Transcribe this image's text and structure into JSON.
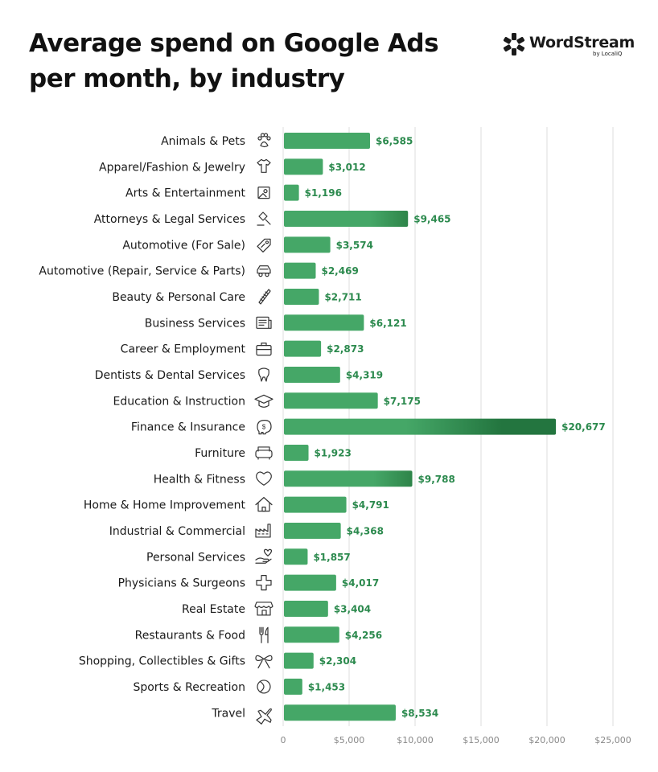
{
  "header": {
    "title": "Average spend on Google Ads per month, by industry"
  },
  "logo": {
    "wordmark": "WordStream",
    "byline": "by LocaliQ"
  },
  "chart_data": {
    "type": "bar",
    "orientation": "horizontal",
    "title": "Average spend on Google Ads per month, by industry",
    "xlabel": "",
    "ylabel": "",
    "xlim": [
      0,
      25000
    ],
    "ticks": [
      0,
      5000,
      10000,
      15000,
      20000,
      25000
    ],
    "tick_labels": [
      "0",
      "$5,000",
      "$10,000",
      "$15,000",
      "$20,000",
      "$25,000"
    ],
    "grid": "vertical",
    "bar_color": "#45a767",
    "bar_color_dark": "#23753f",
    "label_color": "#2c8a4e",
    "categories": [
      {
        "name": "Animals & Pets",
        "value": 6585,
        "label": "$6,585",
        "icon": "paw-icon"
      },
      {
        "name": "Apparel/Fashion & Jewelry",
        "value": 3012,
        "label": "$3,012",
        "icon": "tshirt-icon"
      },
      {
        "name": "Arts & Entertainment",
        "value": 1196,
        "label": "$1,196",
        "icon": "picture-icon"
      },
      {
        "name": "Attorneys & Legal Services",
        "value": 9465,
        "label": "$9,465",
        "icon": "gavel-icon"
      },
      {
        "name": "Automotive (For Sale)",
        "value": 3574,
        "label": "$3,574",
        "icon": "price-tag-icon"
      },
      {
        "name": "Automotive (Repair, Service & Parts)",
        "value": 2469,
        "label": "$2,469",
        "icon": "car-icon"
      },
      {
        "name": "Beauty & Personal Care",
        "value": 2711,
        "label": "$2,711",
        "icon": "comb-icon"
      },
      {
        "name": "Business Services",
        "value": 6121,
        "label": "$6,121",
        "icon": "document-icon"
      },
      {
        "name": "Career & Employment",
        "value": 2873,
        "label": "$2,873",
        "icon": "briefcase-icon"
      },
      {
        "name": "Dentists & Dental Services",
        "value": 4319,
        "label": "$4,319",
        "icon": "tooth-icon"
      },
      {
        "name": "Education & Instruction",
        "value": 7175,
        "label": "$7,175",
        "icon": "graduation-cap-icon"
      },
      {
        "name": "Finance & Insurance",
        "value": 20677,
        "label": "$20,677",
        "icon": "piggy-bank-icon"
      },
      {
        "name": "Furniture",
        "value": 1923,
        "label": "$1,923",
        "icon": "armchair-icon"
      },
      {
        "name": "Health & Fitness",
        "value": 9788,
        "label": "$9,788",
        "icon": "heart-icon"
      },
      {
        "name": "Home & Home Improvement",
        "value": 4791,
        "label": "$4,791",
        "icon": "house-icon"
      },
      {
        "name": "Industrial & Commercial",
        "value": 4368,
        "label": "$4,368",
        "icon": "factory-icon"
      },
      {
        "name": "Personal Services",
        "value": 1857,
        "label": "$1,857",
        "icon": "helping-hand-icon"
      },
      {
        "name": "Physicians & Surgeons",
        "value": 4017,
        "label": "$4,017",
        "icon": "medical-cross-icon"
      },
      {
        "name": "Real Estate",
        "value": 3404,
        "label": "$3,404",
        "icon": "storefront-icon"
      },
      {
        "name": "Restaurants & Food",
        "value": 4256,
        "label": "$4,256",
        "icon": "fork-knife-icon"
      },
      {
        "name": "Shopping, Collectibles & Gifts",
        "value": 2304,
        "label": "$2,304",
        "icon": "gift-bow-icon"
      },
      {
        "name": "Sports & Recreation",
        "value": 1453,
        "label": "$1,453",
        "icon": "ball-icon"
      },
      {
        "name": "Travel",
        "value": 8534,
        "label": "$8,534",
        "icon": "airplane-icon"
      }
    ]
  }
}
